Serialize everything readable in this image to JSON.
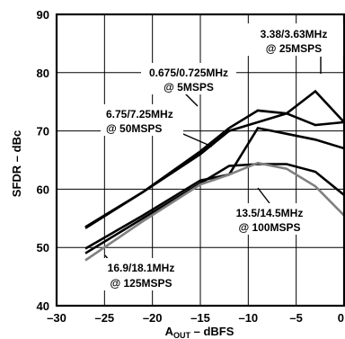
{
  "chart_data": {
    "type": "line",
    "xlabel": "A",
    "xlabel_sub": "OUT",
    "xlabel_suffix": " – dBFS",
    "ylabel": "SFDR – dBc",
    "xlim": [
      -30,
      0
    ],
    "ylim": [
      40,
      90
    ],
    "xticks": [
      -30,
      -25,
      -20,
      -15,
      -10,
      -5,
      0
    ],
    "yticks": [
      40,
      50,
      60,
      70,
      80,
      90
    ],
    "xtick_labels": [
      "–30",
      "–25",
      "–20",
      "–15",
      "–10",
      "–5",
      "0"
    ],
    "ytick_labels": [
      "40",
      "50",
      "60",
      "70",
      "80",
      "90"
    ],
    "grid": true,
    "series": [
      {
        "name": "0.675/0.725MHz @ 5MSPS",
        "color": "#000000",
        "x": [
          -27,
          -21,
          -15,
          -12,
          -9,
          -6,
          -3,
          0
        ],
        "y": [
          53.5,
          59.5,
          66.5,
          70.5,
          73.5,
          73.0,
          71.0,
          71.5
        ]
      },
      {
        "name": "3.38/3.63MHz @ 25MSPS",
        "color": "#000000",
        "x": [
          -27,
          -21,
          -15,
          -12,
          -9,
          -6,
          -3,
          0
        ],
        "y": [
          53.3,
          59.5,
          66.0,
          70.0,
          71.5,
          73.0,
          76.8,
          71.5
        ]
      },
      {
        "name": "6.75/7.25MHz @ 50MSPS",
        "color": "#000000",
        "x": [
          -27,
          -21,
          -15,
          -12,
          -9,
          -6,
          -3,
          0
        ],
        "y": [
          49.8,
          55.5,
          61.5,
          62.5,
          70.5,
          69.5,
          68.5,
          67.0
        ]
      },
      {
        "name": "13.5/14.5MHz @ 100MSPS",
        "color": "#000000",
        "x": [
          -27,
          -21,
          -15,
          -12,
          -9,
          -6,
          -3,
          0
        ],
        "y": [
          49.0,
          55.0,
          61.0,
          64.0,
          64.3,
          64.3,
          63.0,
          59.0
        ]
      },
      {
        "name": "16.9/18.1MHz @ 125MSPS",
        "color": "#808080",
        "x": [
          -27,
          -21,
          -15,
          -12,
          -9,
          -6,
          -3,
          0
        ],
        "y": [
          47.8,
          54.5,
          60.8,
          62.5,
          64.5,
          63.5,
          60.5,
          55.5
        ]
      }
    ],
    "annotations": [
      {
        "lines": [
          "3.38/3.63MHz",
          "@ 25MSPS"
        ]
      },
      {
        "lines": [
          "0.675/0.725MHz",
          "@ 5MSPS"
        ]
      },
      {
        "lines": [
          "6.75/7.25MHz",
          "@ 50MSPS"
        ]
      },
      {
        "lines": [
          "13.5/14.5MHz",
          "@ 100MSPS"
        ]
      },
      {
        "lines": [
          "16.9/18.1MHz",
          "@ 125MSPS"
        ]
      }
    ]
  }
}
